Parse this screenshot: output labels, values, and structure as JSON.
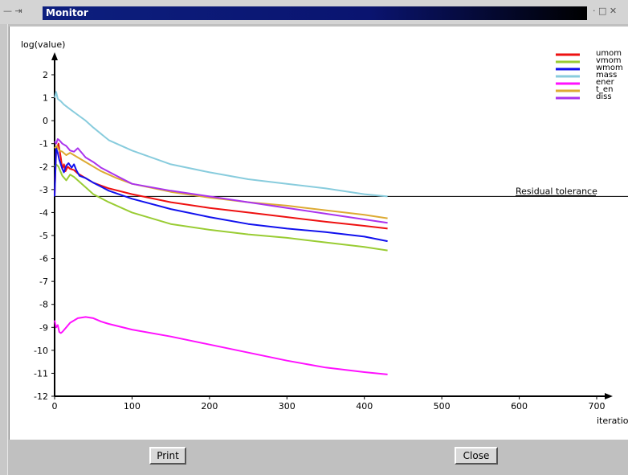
{
  "window": {
    "title": "Monitor",
    "left_controls": "— ⇥",
    "right_controls": "· □ ✕"
  },
  "buttons": {
    "print": "Print",
    "close": "Close"
  },
  "colors": {
    "title_bar": "#0d1f7e",
    "umom": "#ee1111",
    "vmom": "#99cc33",
    "wmom": "#1111ee",
    "mass": "#88ccdd",
    "ener": "#ff11ff",
    "t_en": "#ddaa33",
    "diss": "#aa33ee"
  },
  "chart_data": {
    "type": "line",
    "xlabel": "iteration",
    "ylabel": "log(value)",
    "xlim": [
      0,
      700
    ],
    "ylim": [
      -12,
      2
    ],
    "xticks": [
      0,
      100,
      200,
      300,
      400,
      500,
      600,
      700
    ],
    "yticks": [
      2,
      1,
      0,
      -1,
      -2,
      -3,
      -4,
      -5,
      -6,
      -7,
      -8,
      -9,
      -10,
      -11,
      -12
    ],
    "grid": false,
    "legend_position": "top-right",
    "reference_line": {
      "label": "Residual tolerance",
      "y": -3.3
    },
    "series": [
      {
        "name": "umom",
        "x": [
          0,
          2,
          5,
          8,
          10,
          12,
          14,
          17,
          20,
          25,
          30,
          40,
          50,
          70,
          100,
          150,
          200,
          250,
          300,
          350,
          400,
          430
        ],
        "y": [
          -3.3,
          -1.3,
          -1.0,
          -1.6,
          -2.1,
          -1.9,
          -2.2,
          -2.0,
          -2.1,
          -2.15,
          -2.3,
          -2.5,
          -2.7,
          -2.95,
          -3.2,
          -3.55,
          -3.8,
          -4.0,
          -4.2,
          -4.4,
          -4.58,
          -4.7
        ]
      },
      {
        "name": "vmom",
        "x": [
          0,
          2,
          5,
          10,
          15,
          20,
          25,
          30,
          40,
          50,
          70,
          100,
          150,
          200,
          250,
          300,
          350,
          400,
          430
        ],
        "y": [
          -2.0,
          -1.9,
          -2.0,
          -2.4,
          -2.6,
          -2.35,
          -2.45,
          -2.6,
          -2.9,
          -3.2,
          -3.55,
          -4.0,
          -4.5,
          -4.75,
          -4.95,
          -5.1,
          -5.3,
          -5.5,
          -5.65
        ]
      },
      {
        "name": "wmom",
        "x": [
          0,
          2,
          4,
          6,
          8,
          10,
          12,
          15,
          18,
          22,
          25,
          28,
          32,
          40,
          50,
          70,
          100,
          150,
          200,
          250,
          300,
          350,
          400,
          430
        ],
        "y": [
          -3.3,
          -1.2,
          -1.4,
          -1.7,
          -1.9,
          -2.1,
          -2.25,
          -1.95,
          -1.85,
          -2.05,
          -1.9,
          -2.15,
          -2.4,
          -2.5,
          -2.7,
          -3.05,
          -3.4,
          -3.85,
          -4.2,
          -4.5,
          -4.7,
          -4.85,
          -5.05,
          -5.25
        ]
      },
      {
        "name": "mass",
        "x": [
          0,
          2,
          4,
          8,
          12,
          20,
          30,
          40,
          50,
          70,
          100,
          150,
          200,
          250,
          300,
          350,
          400,
          430
        ],
        "y": [
          1.0,
          1.25,
          0.95,
          0.85,
          0.7,
          0.5,
          0.25,
          0.0,
          -0.3,
          -0.85,
          -1.3,
          -1.9,
          -2.25,
          -2.55,
          -2.75,
          -2.95,
          -3.2,
          -3.3
        ]
      },
      {
        "name": "ener",
        "x": [
          0,
          2,
          4,
          6,
          8,
          10,
          15,
          20,
          30,
          40,
          50,
          60,
          70,
          100,
          150,
          200,
          250,
          300,
          350,
          400,
          430
        ],
        "y": [
          -8.7,
          -9.0,
          -8.9,
          -9.2,
          -9.25,
          -9.2,
          -9.0,
          -8.8,
          -8.6,
          -8.55,
          -8.6,
          -8.75,
          -8.85,
          -9.1,
          -9.4,
          -9.75,
          -10.1,
          -10.45,
          -10.75,
          -10.95,
          -11.05
        ]
      },
      {
        "name": "t_en",
        "x": [
          0,
          3,
          6,
          10,
          15,
          20,
          30,
          40,
          50,
          60,
          80,
          100,
          150,
          200,
          250,
          300,
          350,
          400,
          430
        ],
        "y": [
          -1.2,
          -1.1,
          -1.3,
          -1.35,
          -1.5,
          -1.4,
          -1.6,
          -1.8,
          -2.0,
          -2.2,
          -2.5,
          -2.75,
          -3.1,
          -3.35,
          -3.55,
          -3.7,
          -3.9,
          -4.1,
          -4.25
        ]
      },
      {
        "name": "diss",
        "x": [
          0,
          2,
          4,
          6,
          10,
          15,
          20,
          25,
          30,
          35,
          40,
          50,
          60,
          80,
          100,
          150,
          200,
          250,
          300,
          350,
          400,
          430
        ],
        "y": [
          -0.9,
          -1.0,
          -0.8,
          -0.85,
          -1.0,
          -1.1,
          -1.3,
          -1.35,
          -1.2,
          -1.4,
          -1.6,
          -1.8,
          -2.05,
          -2.4,
          -2.75,
          -3.05,
          -3.3,
          -3.55,
          -3.8,
          -4.05,
          -4.3,
          -4.45
        ]
      }
    ]
  }
}
